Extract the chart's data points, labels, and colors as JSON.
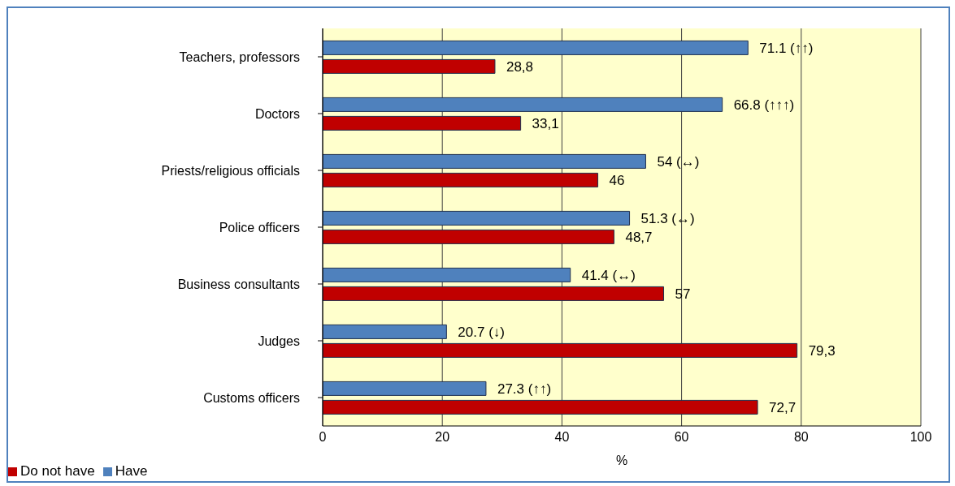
{
  "chart_data": {
    "type": "bar",
    "orientation": "horizontal",
    "xlabel": "%",
    "categories": [
      "Teachers, professors",
      "Doctors",
      "Priests/religious officials",
      "Police officers",
      "Business consultants",
      "Judges",
      "Customs officers"
    ],
    "series": [
      {
        "name": "Have",
        "color": "#4f81bd",
        "values": [
          71.1,
          66.8,
          54,
          51.3,
          41.4,
          20.7,
          27.3
        ],
        "value_labels": [
          "71.1 (↑↑)",
          "66.8 (↑↑↑)",
          "54 (↔)",
          "51.3 (↔)",
          "41.4 (↔)",
          "20.7 (↓)",
          "27.3 (↑↑)"
        ]
      },
      {
        "name": "Do not have",
        "color": "#c00000",
        "values": [
          28.8,
          33.1,
          46,
          48.7,
          57,
          79.3,
          72.7
        ],
        "value_labels": [
          "28,8",
          "33,1",
          "46",
          "48,7",
          "57",
          "79,3",
          "72,7"
        ]
      }
    ],
    "xlim": [
      0,
      100
    ],
    "xticks": [
      0,
      20,
      40,
      60,
      80,
      100
    ],
    "grid": "x",
    "legend": "bottom left"
  }
}
